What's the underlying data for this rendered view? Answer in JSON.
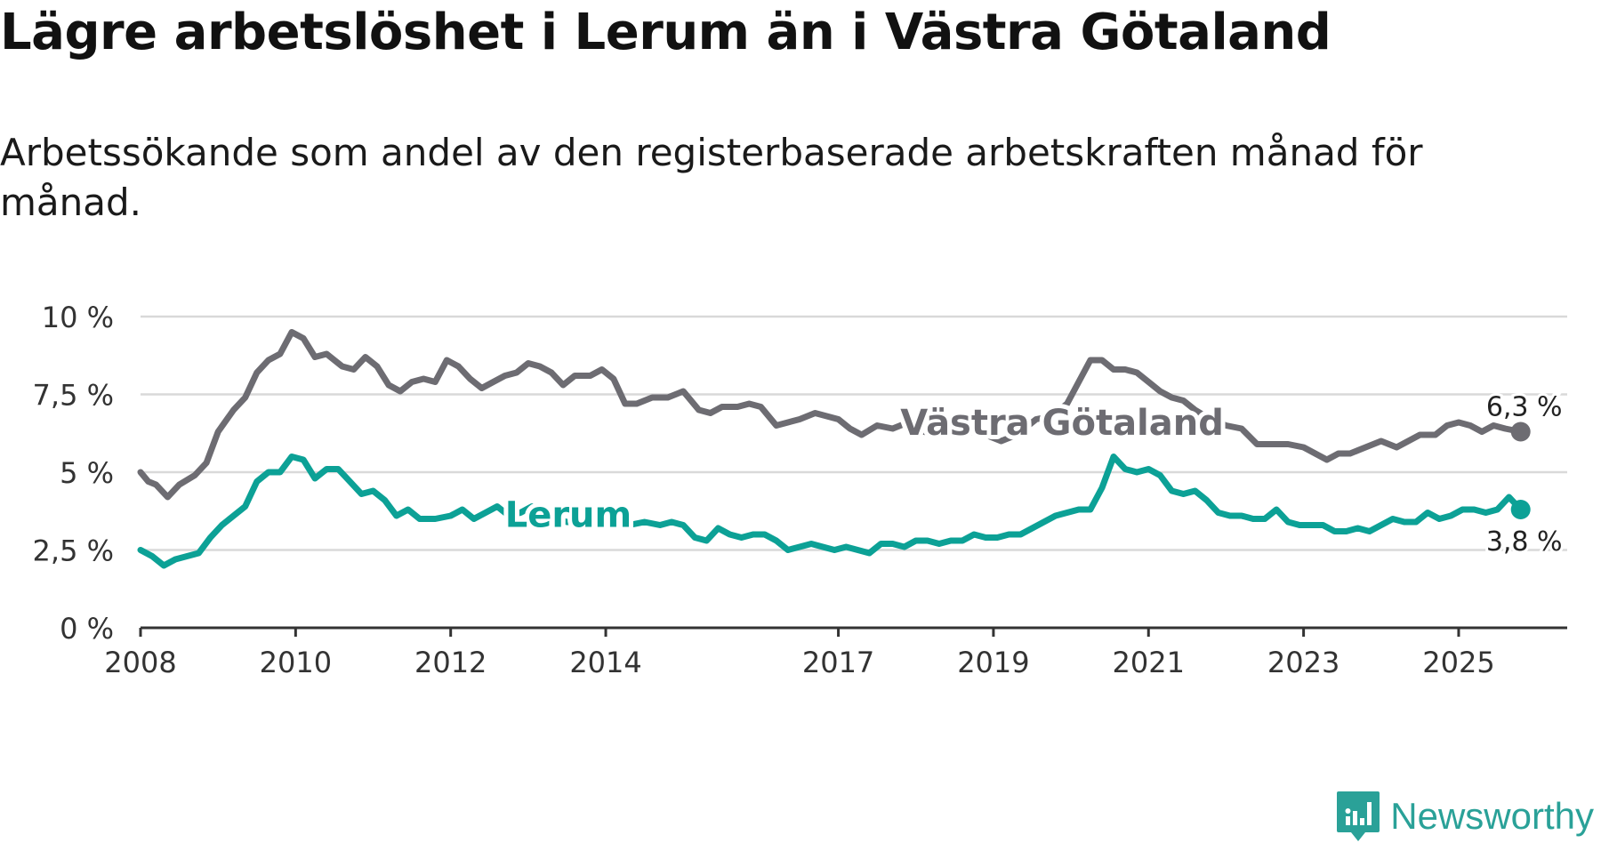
{
  "title": "Lägre arbetslöshet i Lerum än i Västra Götaland",
  "subtitle": "Arbetssökande som andel av den registerbaserade arbetskraften månad för månad.",
  "brand": {
    "name": "Newsworthy",
    "color": "#2aa198"
  },
  "chart_data": {
    "type": "line",
    "ylim": [
      0,
      10
    ],
    "xlim": [
      2008,
      2026.4
    ],
    "yticks": [
      {
        "value": 0,
        "label": "0 %"
      },
      {
        "value": 2.5,
        "label": "2,5 %"
      },
      {
        "value": 5,
        "label": "5 %"
      },
      {
        "value": 7.5,
        "label": "7,5 %"
      },
      {
        "value": 10,
        "label": "10 %"
      }
    ],
    "xticks": [
      {
        "value": 2008,
        "label": "2008"
      },
      {
        "value": 2010,
        "label": "2010"
      },
      {
        "value": 2012,
        "label": "2012"
      },
      {
        "value": 2014,
        "label": "2014"
      },
      {
        "value": 2017,
        "label": "2017"
      },
      {
        "value": 2019,
        "label": "2019"
      },
      {
        "value": 2021,
        "label": "2021"
      },
      {
        "value": 2023,
        "label": "2023"
      },
      {
        "value": 2025,
        "label": "2025"
      }
    ],
    "series": [
      {
        "name": "Västra Götaland",
        "color": "#6d6c72",
        "label_pos": [
          2017.8,
          6.6
        ],
        "end_label": "6,3 %",
        "points": [
          [
            2008.0,
            5.0
          ],
          [
            2008.1,
            4.7
          ],
          [
            2008.2,
            4.6
          ],
          [
            2008.35,
            4.2
          ],
          [
            2008.5,
            4.6
          ],
          [
            2008.7,
            4.9
          ],
          [
            2008.85,
            5.3
          ],
          [
            2009.0,
            6.3
          ],
          [
            2009.2,
            7.0
          ],
          [
            2009.35,
            7.4
          ],
          [
            2009.5,
            8.2
          ],
          [
            2009.65,
            8.6
          ],
          [
            2009.8,
            8.8
          ],
          [
            2009.95,
            9.5
          ],
          [
            2010.1,
            9.3
          ],
          [
            2010.25,
            8.7
          ],
          [
            2010.4,
            8.8
          ],
          [
            2010.6,
            8.4
          ],
          [
            2010.75,
            8.3
          ],
          [
            2010.9,
            8.7
          ],
          [
            2011.05,
            8.4
          ],
          [
            2011.2,
            7.8
          ],
          [
            2011.35,
            7.6
          ],
          [
            2011.5,
            7.9
          ],
          [
            2011.65,
            8.0
          ],
          [
            2011.8,
            7.9
          ],
          [
            2011.95,
            8.6
          ],
          [
            2012.1,
            8.4
          ],
          [
            2012.25,
            8.0
          ],
          [
            2012.4,
            7.7
          ],
          [
            2012.55,
            7.9
          ],
          [
            2012.7,
            8.1
          ],
          [
            2012.85,
            8.2
          ],
          [
            2013.0,
            8.5
          ],
          [
            2013.15,
            8.4
          ],
          [
            2013.3,
            8.2
          ],
          [
            2013.45,
            7.8
          ],
          [
            2013.6,
            8.1
          ],
          [
            2013.8,
            8.1
          ],
          [
            2013.95,
            8.3
          ],
          [
            2014.1,
            8.0
          ],
          [
            2014.25,
            7.2
          ],
          [
            2014.4,
            7.2
          ],
          [
            2014.6,
            7.4
          ],
          [
            2014.8,
            7.4
          ],
          [
            2015.0,
            7.6
          ],
          [
            2015.2,
            7.0
          ],
          [
            2015.35,
            6.9
          ],
          [
            2015.5,
            7.1
          ],
          [
            2015.7,
            7.1
          ],
          [
            2015.85,
            7.2
          ],
          [
            2016.0,
            7.1
          ],
          [
            2016.2,
            6.5
          ],
          [
            2016.35,
            6.6
          ],
          [
            2016.5,
            6.7
          ],
          [
            2016.7,
            6.9
          ],
          [
            2016.85,
            6.8
          ],
          [
            2017.0,
            6.7
          ],
          [
            2017.15,
            6.4
          ],
          [
            2017.3,
            6.2
          ],
          [
            2017.5,
            6.5
          ],
          [
            2017.7,
            6.4
          ],
          [
            2017.9,
            6.6
          ],
          [
            2018.1,
            6.3
          ],
          [
            2018.3,
            6.2
          ],
          [
            2018.5,
            6.4
          ],
          [
            2018.7,
            6.3
          ],
          [
            2018.9,
            6.2
          ],
          [
            2019.1,
            6.0
          ],
          [
            2019.3,
            6.2
          ],
          [
            2019.55,
            6.7
          ],
          [
            2019.75,
            6.8
          ],
          [
            2019.95,
            7.2
          ],
          [
            2020.1,
            7.9
          ],
          [
            2020.25,
            8.6
          ],
          [
            2020.4,
            8.6
          ],
          [
            2020.55,
            8.3
          ],
          [
            2020.7,
            8.3
          ],
          [
            2020.85,
            8.2
          ],
          [
            2021.0,
            7.9
          ],
          [
            2021.15,
            7.6
          ],
          [
            2021.3,
            7.4
          ],
          [
            2021.45,
            7.3
          ],
          [
            2021.6,
            7.0
          ],
          [
            2021.8,
            6.7
          ],
          [
            2022.0,
            6.5
          ],
          [
            2022.2,
            6.4
          ],
          [
            2022.4,
            5.9
          ],
          [
            2022.6,
            5.9
          ],
          [
            2022.8,
            5.9
          ],
          [
            2023.0,
            5.8
          ],
          [
            2023.15,
            5.6
          ],
          [
            2023.3,
            5.4
          ],
          [
            2023.45,
            5.6
          ],
          [
            2023.6,
            5.6
          ],
          [
            2023.8,
            5.8
          ],
          [
            2024.0,
            6.0
          ],
          [
            2024.2,
            5.8
          ],
          [
            2024.35,
            6.0
          ],
          [
            2024.5,
            6.2
          ],
          [
            2024.7,
            6.2
          ],
          [
            2024.85,
            6.5
          ],
          [
            2025.0,
            6.6
          ],
          [
            2025.15,
            6.5
          ],
          [
            2025.3,
            6.3
          ],
          [
            2025.45,
            6.5
          ],
          [
            2025.6,
            6.4
          ],
          [
            2025.8,
            6.3
          ]
        ]
      },
      {
        "name": "Lerum",
        "color": "#0ca196",
        "label_pos": [
          2012.7,
          3.65
        ],
        "end_label": "3,8 %",
        "points": [
          [
            2008.0,
            2.5
          ],
          [
            2008.15,
            2.3
          ],
          [
            2008.3,
            2.0
          ],
          [
            2008.45,
            2.2
          ],
          [
            2008.6,
            2.3
          ],
          [
            2008.75,
            2.4
          ],
          [
            2008.9,
            2.9
          ],
          [
            2009.05,
            3.3
          ],
          [
            2009.2,
            3.6
          ],
          [
            2009.35,
            3.9
          ],
          [
            2009.5,
            4.7
          ],
          [
            2009.65,
            5.0
          ],
          [
            2009.8,
            5.0
          ],
          [
            2009.95,
            5.5
          ],
          [
            2010.1,
            5.4
          ],
          [
            2010.25,
            4.8
          ],
          [
            2010.4,
            5.1
          ],
          [
            2010.55,
            5.1
          ],
          [
            2010.7,
            4.7
          ],
          [
            2010.85,
            4.3
          ],
          [
            2011.0,
            4.4
          ],
          [
            2011.15,
            4.1
          ],
          [
            2011.3,
            3.6
          ],
          [
            2011.45,
            3.8
          ],
          [
            2011.6,
            3.5
          ],
          [
            2011.8,
            3.5
          ],
          [
            2012.0,
            3.6
          ],
          [
            2012.15,
            3.8
          ],
          [
            2012.3,
            3.5
          ],
          [
            2012.45,
            3.7
          ],
          [
            2012.6,
            3.9
          ],
          [
            2012.75,
            3.6
          ],
          [
            2012.9,
            3.7
          ],
          [
            2013.05,
            3.9
          ],
          [
            2013.2,
            3.6
          ],
          [
            2013.35,
            3.5
          ],
          [
            2013.5,
            3.4
          ],
          [
            2013.7,
            3.4
          ],
          [
            2013.9,
            3.3
          ],
          [
            2014.1,
            3.3
          ],
          [
            2014.3,
            3.3
          ],
          [
            2014.5,
            3.4
          ],
          [
            2014.7,
            3.3
          ],
          [
            2014.85,
            3.4
          ],
          [
            2015.0,
            3.3
          ],
          [
            2015.15,
            2.9
          ],
          [
            2015.3,
            2.8
          ],
          [
            2015.45,
            3.2
          ],
          [
            2015.6,
            3.0
          ],
          [
            2015.75,
            2.9
          ],
          [
            2015.9,
            3.0
          ],
          [
            2016.05,
            3.0
          ],
          [
            2016.2,
            2.8
          ],
          [
            2016.35,
            2.5
          ],
          [
            2016.5,
            2.6
          ],
          [
            2016.65,
            2.7
          ],
          [
            2016.8,
            2.6
          ],
          [
            2016.95,
            2.5
          ],
          [
            2017.1,
            2.6
          ],
          [
            2017.25,
            2.5
          ],
          [
            2017.4,
            2.4
          ],
          [
            2017.55,
            2.7
          ],
          [
            2017.7,
            2.7
          ],
          [
            2017.85,
            2.6
          ],
          [
            2018.0,
            2.8
          ],
          [
            2018.15,
            2.8
          ],
          [
            2018.3,
            2.7
          ],
          [
            2018.45,
            2.8
          ],
          [
            2018.6,
            2.8
          ],
          [
            2018.75,
            3.0
          ],
          [
            2018.9,
            2.9
          ],
          [
            2019.05,
            2.9
          ],
          [
            2019.2,
            3.0
          ],
          [
            2019.35,
            3.0
          ],
          [
            2019.5,
            3.2
          ],
          [
            2019.65,
            3.4
          ],
          [
            2019.8,
            3.6
          ],
          [
            2019.95,
            3.7
          ],
          [
            2020.1,
            3.8
          ],
          [
            2020.25,
            3.8
          ],
          [
            2020.4,
            4.5
          ],
          [
            2020.55,
            5.5
          ],
          [
            2020.7,
            5.1
          ],
          [
            2020.85,
            5.0
          ],
          [
            2021.0,
            5.1
          ],
          [
            2021.15,
            4.9
          ],
          [
            2021.3,
            4.4
          ],
          [
            2021.45,
            4.3
          ],
          [
            2021.6,
            4.4
          ],
          [
            2021.75,
            4.1
          ],
          [
            2021.9,
            3.7
          ],
          [
            2022.05,
            3.6
          ],
          [
            2022.2,
            3.6
          ],
          [
            2022.35,
            3.5
          ],
          [
            2022.5,
            3.5
          ],
          [
            2022.65,
            3.8
          ],
          [
            2022.8,
            3.4
          ],
          [
            2022.95,
            3.3
          ],
          [
            2023.1,
            3.3
          ],
          [
            2023.25,
            3.3
          ],
          [
            2023.4,
            3.1
          ],
          [
            2023.55,
            3.1
          ],
          [
            2023.7,
            3.2
          ],
          [
            2023.85,
            3.1
          ],
          [
            2024.0,
            3.3
          ],
          [
            2024.15,
            3.5
          ],
          [
            2024.3,
            3.4
          ],
          [
            2024.45,
            3.4
          ],
          [
            2024.6,
            3.7
          ],
          [
            2024.75,
            3.5
          ],
          [
            2024.9,
            3.6
          ],
          [
            2025.05,
            3.8
          ],
          [
            2025.2,
            3.8
          ],
          [
            2025.35,
            3.7
          ],
          [
            2025.5,
            3.8
          ],
          [
            2025.65,
            4.2
          ],
          [
            2025.8,
            3.8
          ]
        ]
      }
    ]
  }
}
